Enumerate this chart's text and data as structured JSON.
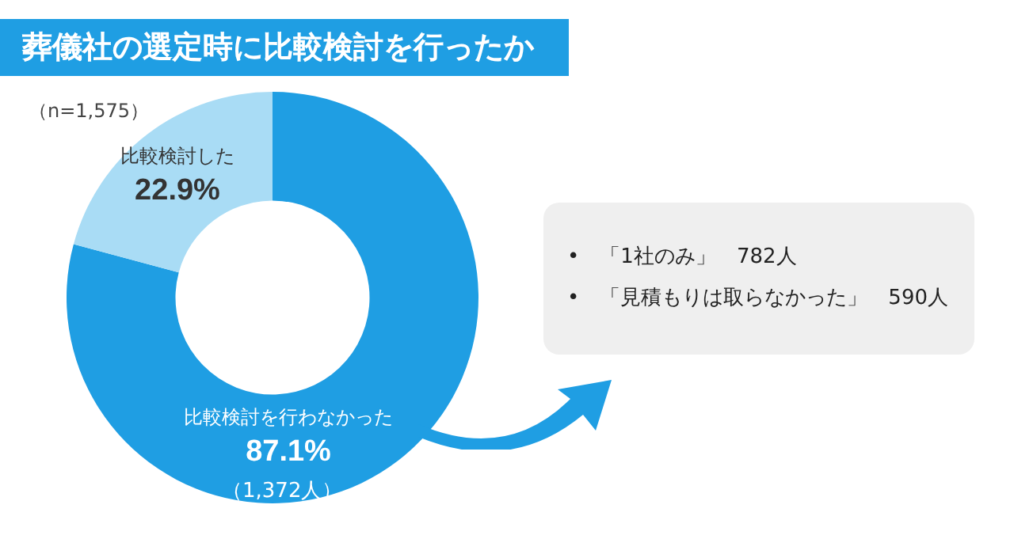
{
  "chart_data": {
    "type": "donut",
    "title": "葬儀社の選定時に比較検討を行ったか",
    "categories": [
      "比較検討を行わなかった",
      "比較検討した"
    ],
    "values": [
      87.1,
      22.9
    ],
    "colors": [
      "#1f9ee3",
      "#a9dcf5"
    ],
    "value_labels": [
      "87.1%",
      "22.9%"
    ],
    "legend": false,
    "annotations": [
      "（n=1,575）",
      "（1,372人）",
      "•　「1社のみ」　782人",
      "•　「見積もりは取らなかった」　590人"
    ]
  }
}
